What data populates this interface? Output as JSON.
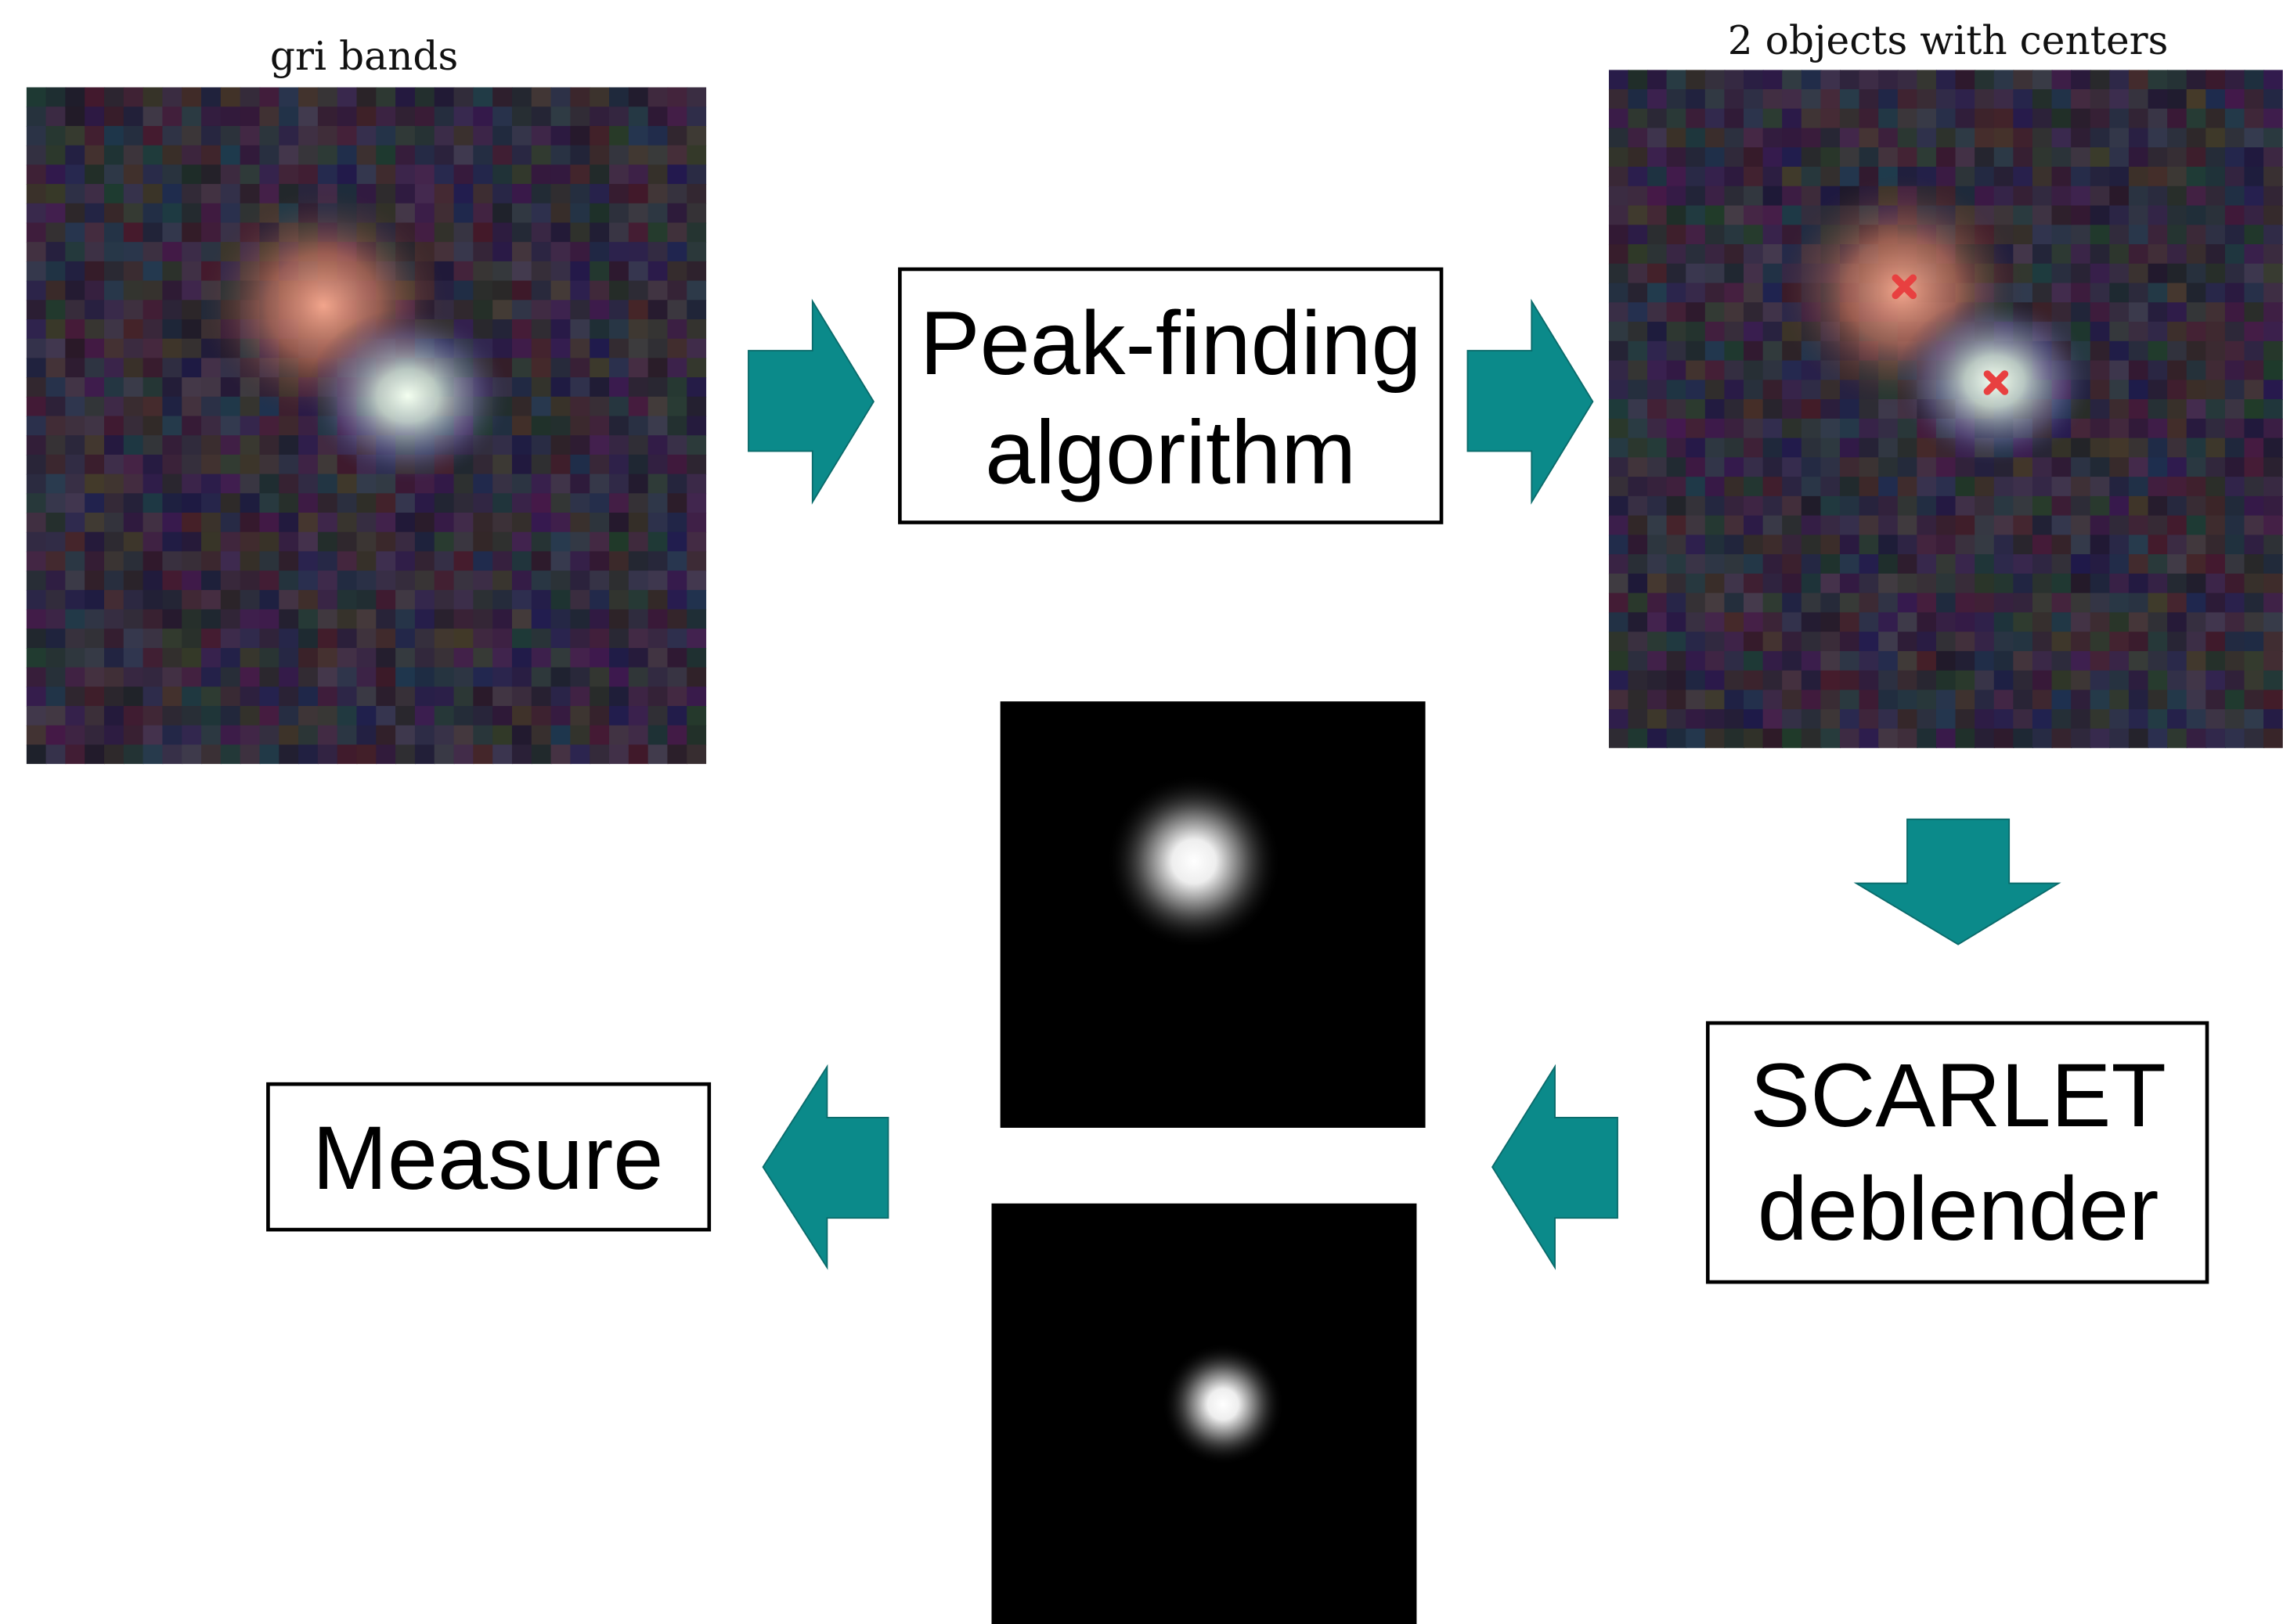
{
  "images": {
    "input": {
      "title": "gri bands"
    },
    "detected": {
      "title": "2 objects with centers"
    }
  },
  "nodes": [
    {
      "lines": [
        "Peak-finding",
        "algorithm"
      ]
    },
    {
      "lines": [
        "SCARLET",
        "deblender"
      ]
    },
    {
      "lines": [
        "Measure"
      ]
    }
  ]
}
